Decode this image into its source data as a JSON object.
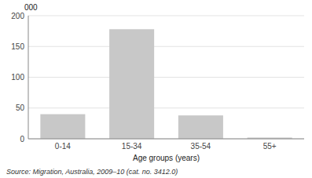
{
  "chart_data": {
    "type": "bar",
    "categories": [
      "0-14",
      "15-34",
      "35-54",
      "55+"
    ],
    "values": [
      40,
      178,
      38,
      2
    ],
    "color": "#c8c8c8",
    "xlabel": "Age groups (years)",
    "ylabel": "000",
    "annotations": [
      "Source: Migration, Australia, 2009–10 (cat. no. 3412.0)"
    ],
    "ylim": [
      0,
      200
    ],
    "yticks": [
      0,
      50,
      100,
      150,
      200
    ],
    "grid": true
  }
}
